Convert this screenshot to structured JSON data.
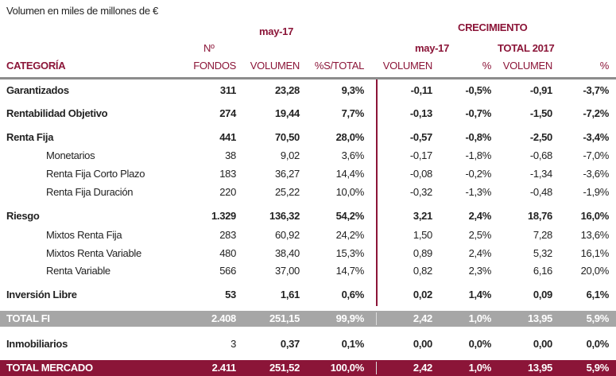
{
  "note": "Volumen en miles de millones de €",
  "header": {
    "period": "may-17",
    "growth": "CRECIMIENTO",
    "growth_period": "may-17",
    "growth_total": "TOTAL 2017",
    "n": "Nº",
    "category": "CATEGORÍA",
    "cols": [
      "FONDOS",
      "VOLUMEN",
      "%S/TOTAL",
      "VOLUMEN",
      "%",
      "VOLUMEN",
      "%"
    ]
  },
  "colors": {
    "accent": "#8b1538",
    "total_fi_bg": "#a6a6a6"
  },
  "rows": [
    {
      "label": "Garantizados",
      "style": "bold",
      "values": [
        "311",
        "23,28",
        "9,3%",
        "-0,11",
        "-0,5%",
        "-0,91",
        "-3,7%"
      ]
    },
    {
      "label": "Rentabilidad Objetivo",
      "style": "bold",
      "values": [
        "274",
        "19,44",
        "7,7%",
        "-0,13",
        "-0,7%",
        "-1,50",
        "-7,2%"
      ]
    },
    {
      "label": "Renta Fija",
      "style": "bold",
      "values": [
        "441",
        "70,50",
        "28,0%",
        "-0,57",
        "-0,8%",
        "-2,50",
        "-3,4%"
      ]
    },
    {
      "label": "Monetarios",
      "style": "sub",
      "values": [
        "38",
        "9,02",
        "3,6%",
        "-0,17",
        "-1,8%",
        "-0,68",
        "-7,0%"
      ]
    },
    {
      "label": "Renta Fija Corto Plazo",
      "style": "sub",
      "values": [
        "183",
        "36,27",
        "14,4%",
        "-0,08",
        "-0,2%",
        "-1,34",
        "-3,6%"
      ]
    },
    {
      "label": "Renta Fija Duración",
      "style": "sub",
      "values": [
        "220",
        "25,22",
        "10,0%",
        "-0,32",
        "-1,3%",
        "-0,48",
        "-1,9%"
      ]
    },
    {
      "label": "Riesgo",
      "style": "bold",
      "values": [
        "1.329",
        "136,32",
        "54,2%",
        "3,21",
        "2,4%",
        "18,76",
        "16,0%"
      ]
    },
    {
      "label": "Mixtos Renta Fija",
      "style": "sub",
      "values": [
        "283",
        "60,92",
        "24,2%",
        "1,50",
        "2,5%",
        "7,28",
        "13,6%"
      ]
    },
    {
      "label": "Mixtos Renta Variable",
      "style": "sub",
      "values": [
        "480",
        "38,40",
        "15,3%",
        "0,89",
        "2,4%",
        "5,32",
        "16,1%"
      ]
    },
    {
      "label": "Renta Variable",
      "style": "sub",
      "values": [
        "566",
        "37,00",
        "14,7%",
        "0,82",
        "2,3%",
        "6,16",
        "20,0%"
      ]
    },
    {
      "label": "Inversión Libre",
      "style": "bold",
      "values": [
        "53",
        "1,61",
        "0,6%",
        "0,02",
        "1,4%",
        "0,09",
        "6,1%"
      ]
    },
    {
      "label": "TOTAL FI",
      "style": "grey",
      "values": [
        "2.408",
        "251,15",
        "99,9%",
        "2,42",
        "1,0%",
        "13,95",
        "5,9%"
      ]
    },
    {
      "label": "Inmobiliarios",
      "style": "boldn",
      "values": [
        "3",
        "0,37",
        "0,1%",
        "0,00",
        "0,0%",
        "0,00",
        "0,0%"
      ]
    },
    {
      "label": "TOTAL MERCADO",
      "style": "maroon",
      "values": [
        "2.411",
        "251,52",
        "100,0%",
        "2,42",
        "1,0%",
        "13,95",
        "5,9%"
      ]
    }
  ]
}
